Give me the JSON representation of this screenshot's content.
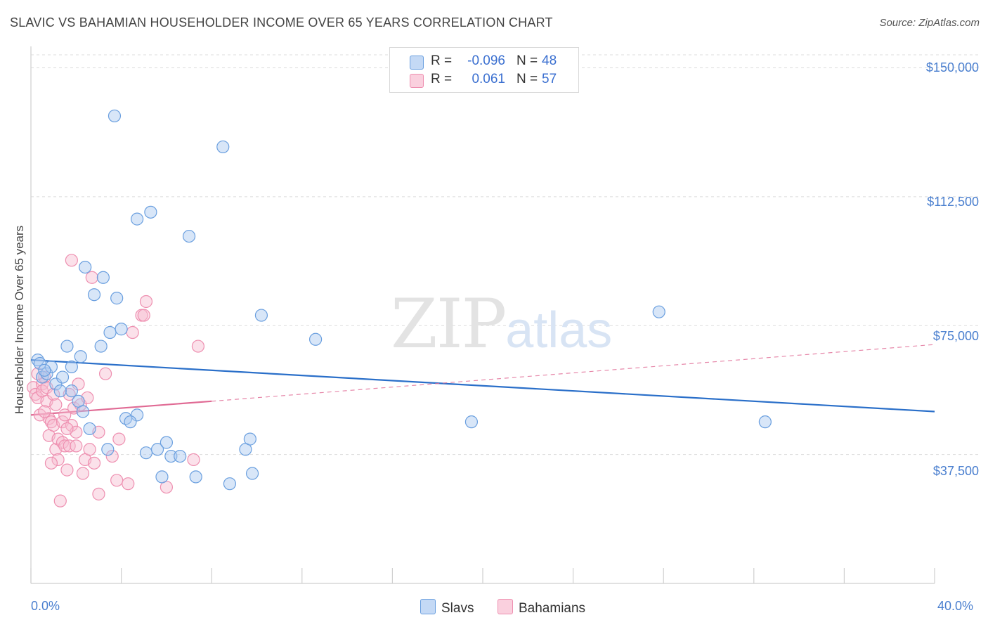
{
  "title": "SLAVIC VS BAHAMIAN HOUSEHOLDER INCOME OVER 65 YEARS CORRELATION CHART",
  "source": "Source: ZipAtlas.com",
  "watermark": {
    "zip": "ZIP",
    "atlas": "atlas"
  },
  "legend": {
    "rows": [
      {
        "r_label": "R =",
        "r_value": "-0.096",
        "n_label": "N =",
        "n_value": "48",
        "color": "#a9c8f0"
      },
      {
        "r_label": "R =",
        "r_value": "0.061",
        "n_label": "N =",
        "n_value": "57",
        "color": "#f7bcd0"
      }
    ]
  },
  "bottom_legend": [
    {
      "label": "Slavs",
      "color": "#a9c8f0"
    },
    {
      "label": "Bahamians",
      "color": "#f7bcd0"
    }
  ],
  "chart_data": {
    "type": "scatter",
    "title": "SLAVIC VS BAHAMIAN HOUSEHOLDER INCOME OVER 65 YEARS CORRELATION CHART",
    "xlabel": "",
    "ylabel": "Householder Income Over 65 years",
    "xlim": [
      0,
      40
    ],
    "ylim": [
      0,
      155000
    ],
    "x_tick_labels": [
      "0.0%",
      "40.0%"
    ],
    "y_ticks": [
      37500,
      75000,
      112500,
      150000
    ],
    "y_tick_labels": [
      "$37,500",
      "$75,000",
      "$112,500",
      "$150,000"
    ],
    "grid": true,
    "series": [
      {
        "name": "Slavs",
        "color": "#6a9fdf",
        "fill": "#a9c8f0",
        "trend": {
          "x": [
            0,
            40
          ],
          "y": [
            65000,
            50000
          ],
          "style": "solid",
          "color": "#2a6fc9"
        },
        "points": [
          [
            0.3,
            65000
          ],
          [
            0.4,
            64000
          ],
          [
            0.5,
            60000
          ],
          [
            0.7,
            61000
          ],
          [
            0.9,
            63000
          ],
          [
            1.1,
            58000
          ],
          [
            1.4,
            60000
          ],
          [
            1.6,
            69000
          ],
          [
            1.8,
            63000
          ],
          [
            1.8,
            56000
          ],
          [
            2.1,
            53000
          ],
          [
            2.2,
            66000
          ],
          [
            2.3,
            50000
          ],
          [
            2.4,
            92000
          ],
          [
            2.8,
            84000
          ],
          [
            3.1,
            69000
          ],
          [
            3.2,
            89000
          ],
          [
            3.4,
            39000
          ],
          [
            3.5,
            73000
          ],
          [
            3.8,
            83000
          ],
          [
            3.7,
            136000
          ],
          [
            4.0,
            74000
          ],
          [
            4.2,
            48000
          ],
          [
            4.7,
            106000
          ],
          [
            4.7,
            49000
          ],
          [
            5.1,
            38000
          ],
          [
            5.3,
            108000
          ],
          [
            5.6,
            39000
          ],
          [
            5.8,
            31000
          ],
          [
            6.0,
            41000
          ],
          [
            6.2,
            37000
          ],
          [
            6.6,
            37000
          ],
          [
            7.0,
            101000
          ],
          [
            7.3,
            31000
          ],
          [
            8.5,
            127000
          ],
          [
            8.8,
            29000
          ],
          [
            9.5,
            39000
          ],
          [
            9.7,
            42000
          ],
          [
            9.8,
            32000
          ],
          [
            10.2,
            78000
          ],
          [
            12.6,
            71000
          ],
          [
            19.5,
            47000
          ],
          [
            27.8,
            79000
          ],
          [
            32.5,
            47000
          ],
          [
            0.6,
            62000
          ],
          [
            1.3,
            56000
          ],
          [
            2.6,
            45000
          ],
          [
            4.4,
            47000
          ]
        ]
      },
      {
        "name": "Bahamians",
        "color": "#ee8fb0",
        "fill": "#f7bcd0",
        "trend": {
          "x": [
            0,
            8
          ],
          "y": [
            49000,
            53000
          ],
          "style": "solid",
          "color": "#e06a94",
          "extension": {
            "x": [
              8,
              40
            ],
            "y": [
              53000,
              69500
            ],
            "style": "dashed"
          }
        },
        "points": [
          [
            0.1,
            57000
          ],
          [
            0.2,
            55000
          ],
          [
            0.3,
            54000
          ],
          [
            0.4,
            49000
          ],
          [
            0.5,
            58000
          ],
          [
            0.5,
            56000
          ],
          [
            0.6,
            60000
          ],
          [
            0.7,
            57000
          ],
          [
            0.7,
            53000
          ],
          [
            0.8,
            48000
          ],
          [
            0.8,
            43000
          ],
          [
            0.9,
            47000
          ],
          [
            1.0,
            55000
          ],
          [
            1.0,
            46000
          ],
          [
            1.1,
            52000
          ],
          [
            1.1,
            39000
          ],
          [
            1.2,
            42000
          ],
          [
            1.2,
            36000
          ],
          [
            1.3,
            24000
          ],
          [
            1.4,
            41000
          ],
          [
            1.4,
            47000
          ],
          [
            1.5,
            40000
          ],
          [
            1.5,
            49000
          ],
          [
            1.6,
            33000
          ],
          [
            1.7,
            55000
          ],
          [
            1.7,
            40000
          ],
          [
            1.8,
            94000
          ],
          [
            1.8,
            46000
          ],
          [
            1.9,
            51000
          ],
          [
            2.0,
            44000
          ],
          [
            2.0,
            40000
          ],
          [
            2.1,
            58000
          ],
          [
            2.2,
            52000
          ],
          [
            2.3,
            32000
          ],
          [
            2.4,
            36000
          ],
          [
            2.5,
            54000
          ],
          [
            2.6,
            39000
          ],
          [
            2.7,
            89000
          ],
          [
            2.8,
            35000
          ],
          [
            3.0,
            44000
          ],
          [
            3.0,
            26000
          ],
          [
            3.3,
            61000
          ],
          [
            3.6,
            37000
          ],
          [
            3.8,
            30000
          ],
          [
            3.9,
            42000
          ],
          [
            4.3,
            29000
          ],
          [
            4.5,
            73000
          ],
          [
            4.9,
            78000
          ],
          [
            5.0,
            78000
          ],
          [
            5.1,
            82000
          ],
          [
            6.0,
            28000
          ],
          [
            7.2,
            36000
          ],
          [
            7.4,
            69000
          ],
          [
            0.9,
            35000
          ],
          [
            0.3,
            61000
          ],
          [
            1.6,
            45000
          ],
          [
            0.6,
            50000
          ]
        ]
      }
    ]
  }
}
